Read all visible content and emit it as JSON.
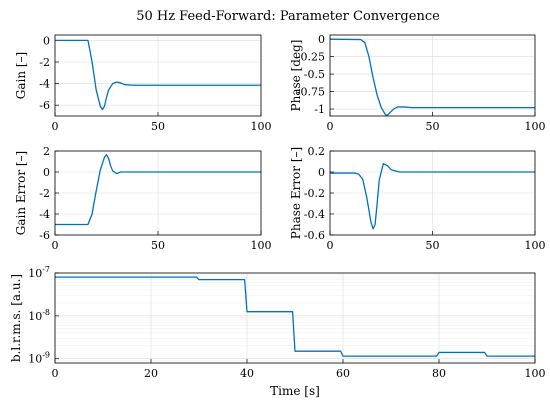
{
  "figure_title": "50 Hz Feed-Forward: Parameter Convergence",
  "colors": {
    "line": "#0072BD"
  },
  "chart_data": [
    {
      "id": "gain",
      "type": "line",
      "ylabel": "Gain [–]",
      "xlim": [
        0,
        100
      ],
      "ylim": [
        -7,
        0.5
      ],
      "xticks": [
        0,
        50,
        100
      ],
      "yticks": [
        0,
        -2,
        -4,
        -6
      ],
      "ytick_labels": [
        "0",
        "-2",
        "-4",
        "-6"
      ],
      "grid": true,
      "x": [
        0,
        16,
        18,
        20,
        22,
        23,
        24,
        25,
        26,
        28,
        30,
        32,
        34,
        38,
        45,
        60,
        80,
        100
      ],
      "y": [
        0,
        0,
        -2.0,
        -4.6,
        -6.1,
        -6.4,
        -6.1,
        -5.3,
        -4.6,
        -4.0,
        -3.85,
        -3.95,
        -4.1,
        -4.15,
        -4.15,
        -4.15,
        -4.15,
        -4.15
      ]
    },
    {
      "id": "phase",
      "type": "line",
      "ylabel": "Phase [deg]",
      "xlim": [
        0,
        100
      ],
      "ylim": [
        -1.1,
        0.06
      ],
      "xticks": [
        0,
        50,
        100
      ],
      "yticks": [
        0,
        -0.25,
        -0.5,
        -0.75,
        -1
      ],
      "ytick_labels": [
        "0",
        "-0.25",
        "-0.5",
        "-0.75",
        "-1"
      ],
      "grid": true,
      "x": [
        0,
        15,
        17,
        19,
        21,
        23,
        25,
        27,
        28,
        29,
        31,
        33,
        36,
        40,
        50,
        60,
        80,
        100
      ],
      "y": [
        0,
        -0.005,
        -0.05,
        -0.25,
        -0.55,
        -0.8,
        -0.98,
        -1.08,
        -1.09,
        -1.06,
        -1.0,
        -0.97,
        -0.97,
        -0.98,
        -0.98,
        -0.98,
        -0.98,
        -0.98
      ]
    },
    {
      "id": "gain_error",
      "type": "line",
      "ylabel": "Gain Error [–]",
      "xlim": [
        0,
        100
      ],
      "ylim": [
        -6,
        2
      ],
      "xticks": [
        0,
        50,
        100
      ],
      "yticks": [
        2,
        0,
        -2,
        -4,
        -6
      ],
      "ytick_labels": [
        "2",
        "0",
        "-2",
        "-4",
        "-6"
      ],
      "grid": true,
      "x": [
        0,
        16,
        18,
        20,
        22,
        24,
        25,
        26,
        27,
        28,
        30,
        32,
        36,
        50,
        80,
        100
      ],
      "y": [
        -5,
        -5,
        -4.0,
        -1.8,
        0.2,
        1.4,
        1.65,
        1.3,
        0.6,
        0.1,
        -0.15,
        0.0,
        0.0,
        0.0,
        0.0,
        0.0
      ]
    },
    {
      "id": "phase_error",
      "type": "line",
      "ylabel": "Phase Error [–]",
      "xlim": [
        0,
        100
      ],
      "ylim": [
        -0.6,
        0.2
      ],
      "xticks": [
        0,
        50,
        100
      ],
      "yticks": [
        0.2,
        0,
        -0.2,
        -0.4,
        -0.6
      ],
      "ytick_labels": [
        "0.2",
        "0",
        "-0.2",
        "-0.4",
        "-0.6"
      ],
      "grid": true,
      "x": [
        0,
        12,
        14,
        16,
        18,
        20,
        21,
        22,
        23,
        24,
        26,
        28,
        30,
        32,
        34,
        40,
        60,
        80,
        100
      ],
      "y": [
        -0.01,
        -0.01,
        -0.02,
        -0.07,
        -0.25,
        -0.48,
        -0.54,
        -0.5,
        -0.3,
        -0.08,
        0.08,
        0.06,
        0.02,
        0.01,
        0.0,
        0.0,
        0.0,
        0.0,
        0.0
      ]
    },
    {
      "id": "blrms",
      "type": "line",
      "ylabel": "b.l.r.m.s. [a.u.]",
      "xlabel": "Time [s]",
      "xlim": [
        0,
        100
      ],
      "ylim_log10": [
        -9.1,
        -7
      ],
      "yscale": "log",
      "xticks": [
        0,
        20,
        40,
        60,
        80,
        100
      ],
      "yticks_log10": [
        -7,
        -8,
        -9
      ],
      "ytick_base": "10",
      "ytick_exponents": [
        "-7",
        "-8",
        "-9"
      ],
      "grid": true,
      "x": [
        0,
        29.5,
        30,
        39.5,
        40,
        49.5,
        50,
        59.5,
        60,
        79.5,
        80,
        89.5,
        90,
        100
      ],
      "y": [
        8e-08,
        8e-08,
        7e-08,
        7e-08,
        1.25e-08,
        1.25e-08,
        1.5e-09,
        1.5e-09,
        1.15e-09,
        1.15e-09,
        1.4e-09,
        1.4e-09,
        1.15e-09,
        1.15e-09
      ]
    }
  ]
}
